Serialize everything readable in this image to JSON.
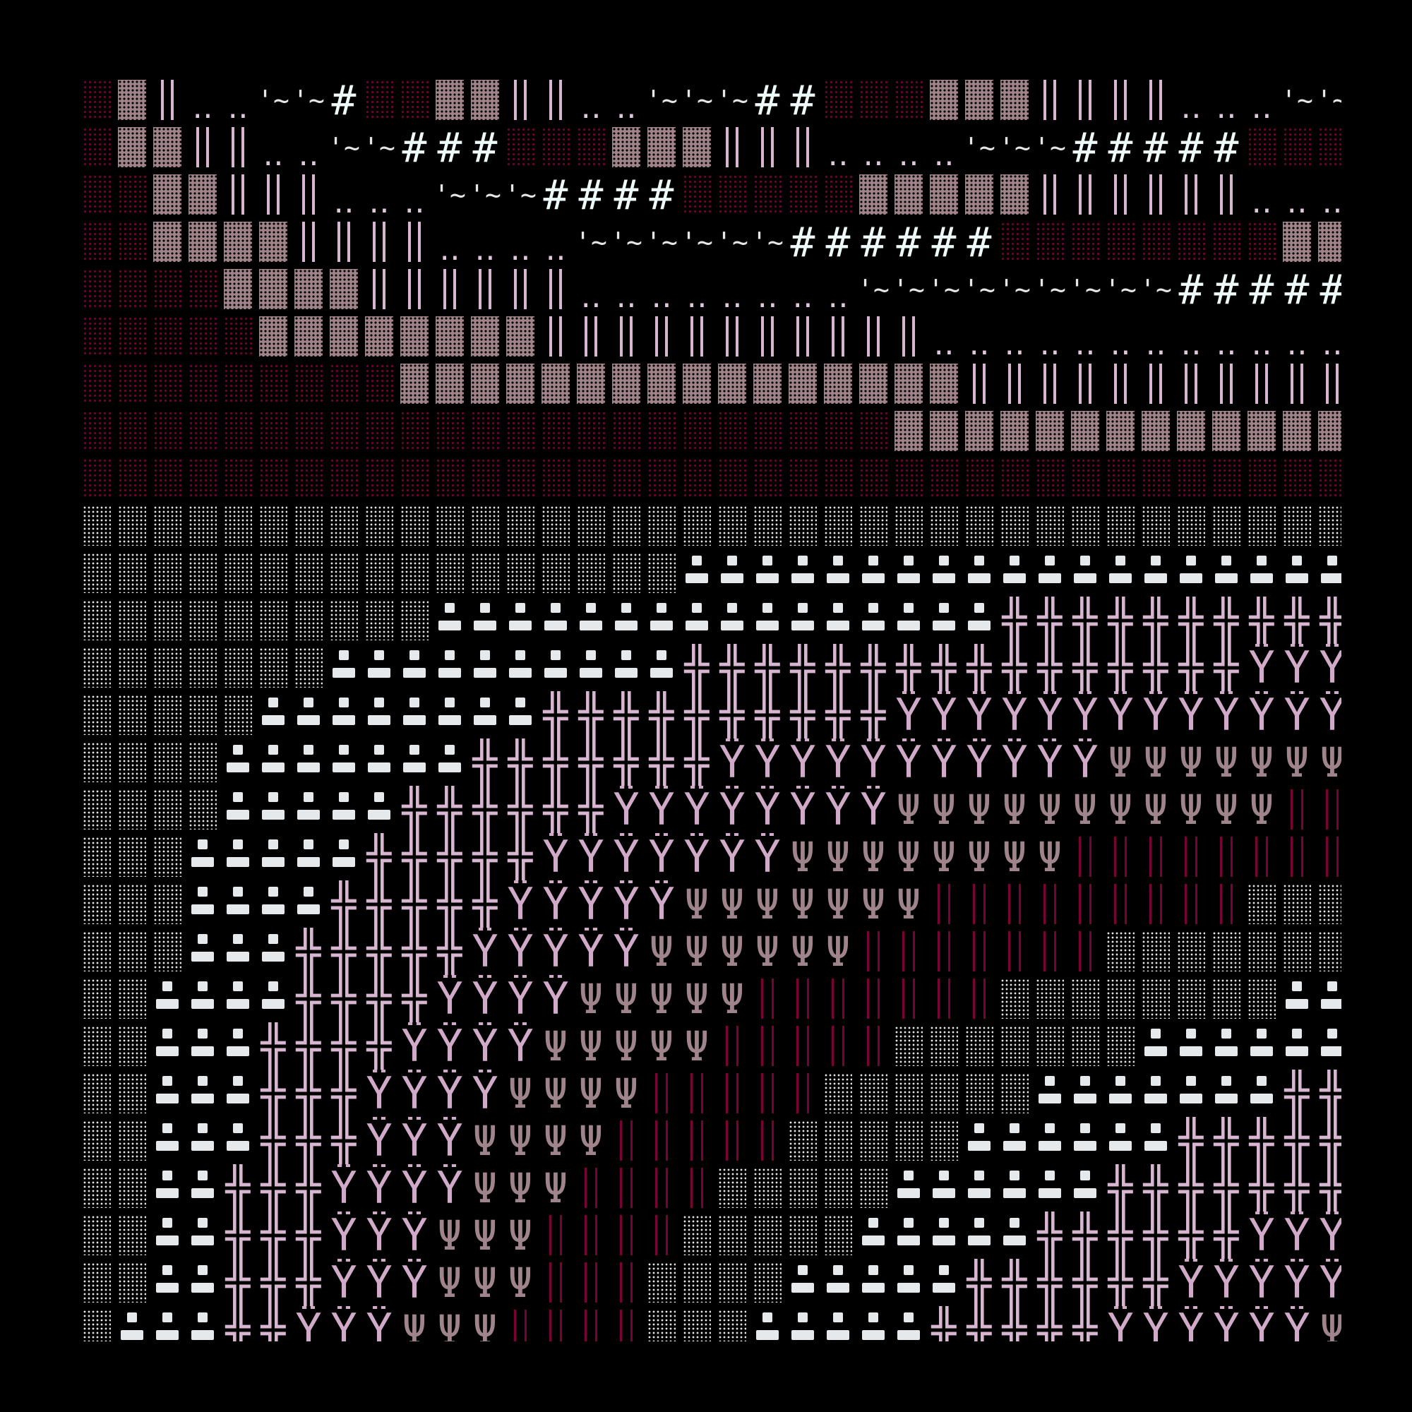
{
  "colors": {
    "background": "#000000",
    "dark_red_dots": "#6e0032",
    "mauve_block": "#a08389",
    "lavender": "#d8b6d2",
    "white": "#e6e9ec",
    "dark_red_bars": "#7a0036",
    "psi_mauve": "#a0848c"
  },
  "glyphs": {
    "d": {
      "char": "░",
      "name": "dark-red-shade"
    },
    "M": {
      "char": "▓",
      "name": "mauve-block"
    },
    "|": {
      "char": "║",
      "name": "double-bar"
    },
    ".": {
      "char": "‥",
      "name": "two-dots"
    },
    "t": {
      "char": "'~",
      "name": "tick-tilde"
    },
    "#": {
      "char": "#",
      "name": "hash"
    },
    "w": {
      "char": "▒",
      "name": "white-shade"
    },
    "s": {
      "char": "▪▬",
      "name": "white-dashes"
    },
    "+": {
      "char": "╬",
      "name": "cross"
    },
    "Y": {
      "char": "Ÿ",
      "name": "y-dot"
    },
    "P": {
      "char": "Ψ",
      "name": "psi"
    },
    "r": {
      "char": "║",
      "name": "dark-red-bar"
    }
  },
  "rows": [
    "d1 M1 |1 .2 t2 #1 d2 M2 |2 .2 t3 #2 d3 M3 |4 .3 t2",
    "d1 M2 |2 .2 t2 #3 d3 M3 |3 .4 t3 #5 d3",
    "d2 M2 |3 .3 t3 #4 d5 M5 |6 .3",
    "d2 M4 |4 .4 t6 #6 d8 M2",
    "d4 M4 |6 .8 t9 #5",
    "d5 M8 |11 .12",
    "d9 M16 |11",
    "d23 M13",
    "d36",
    "w36",
    "w17 s19",
    "w10 s16 +10",
    "w7 s10 +16 Y3",
    "w5 s8 +10 Y13",
    "w4 s7 +7 Y11 P7",
    "w4 s5 +6 Y8 P11 r2",
    "w3 s5 +5 Y7 P8 r8",
    "w3 s4 +5 Y5 P7 r9 w3",
    "w3 s3 +5 Y5 P6 r7 w7",
    "w2 s4 +4 Y4 P5 r7 w8 s2",
    "w2 s3 +4 Y4 P5 r5 w7 s6",
    "w2 s3 +3 Y4 P4 r5 w6 s7 +2",
    "w2 s3 +3 Y3 P4 r5 w5 s6 +5",
    "w2 s2 +3 Y4 P3 r4 w5 s6 +7",
    "w2 s2 +3 Y3 P3 r4 w5 s5 +6 Y3",
    "w2 s2 +3 Y3 P3 r3 w4 s5 +6 Y5",
    "w1 s3 +2 Y3 P3 r4 w3 s5 +5 Y6 P1"
  ]
}
